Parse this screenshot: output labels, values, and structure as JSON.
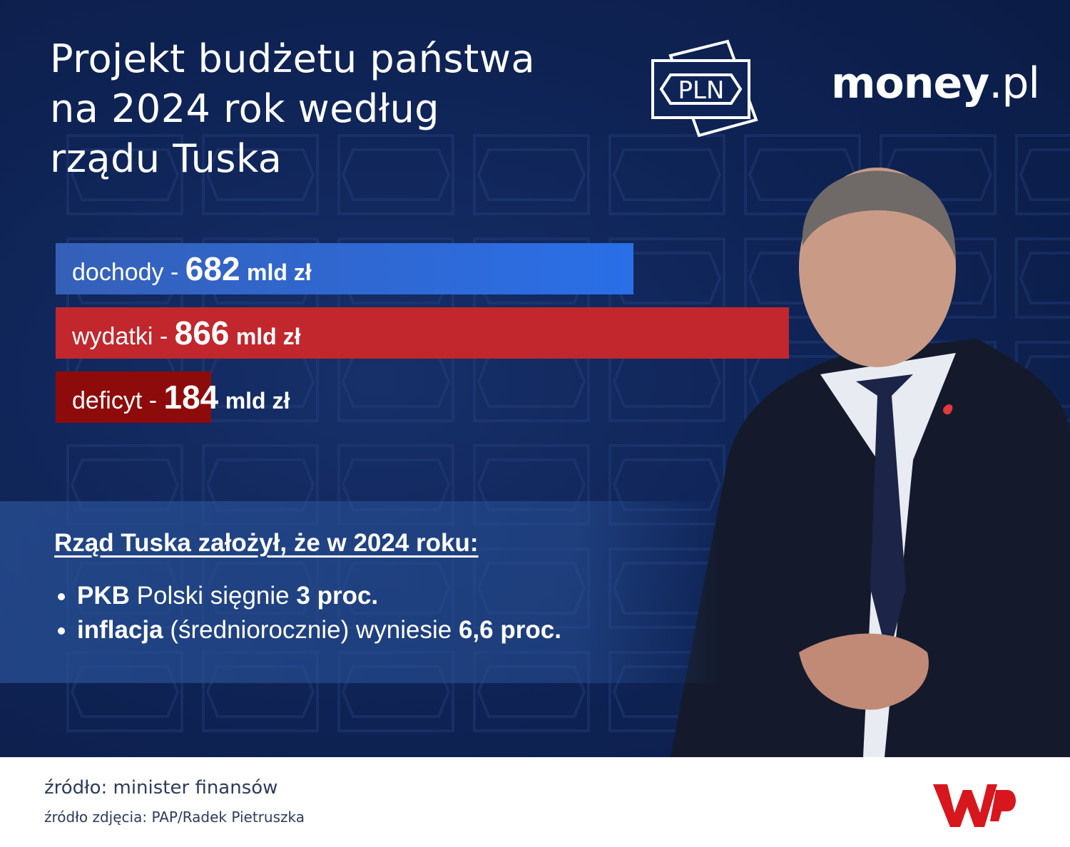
{
  "chart_data": {
    "type": "bar",
    "orientation": "horizontal",
    "title": [
      "Projekt budżetu państwa",
      "na 2024 rok według",
      "rządu Tuska"
    ],
    "brand": {
      "currency_badge": "PLN",
      "logo_main": "money",
      "logo_suffix": ".pl"
    },
    "categories": [
      "dochody",
      "wydatki",
      "deficyt"
    ],
    "separator": "-",
    "values": [
      682,
      866,
      184
    ],
    "unit": "mld zł",
    "colors": [
      "#2a6fe8",
      "#c1272d",
      "#8e0b0b"
    ],
    "info": {
      "heading": "Rząd Tuska założył, że w 2024 roku:",
      "bullets": [
        [
          "PKB",
          "Polski sięgnie",
          "3 proc."
        ],
        [
          "inflacja",
          "(średniorocznie) wyniesie",
          "6,6 proc."
        ]
      ]
    },
    "footer": {
      "source": "źródło: minister finansów",
      "photo_source": "źródło zdjęcia: PAP/Radek Pietruszka"
    }
  }
}
